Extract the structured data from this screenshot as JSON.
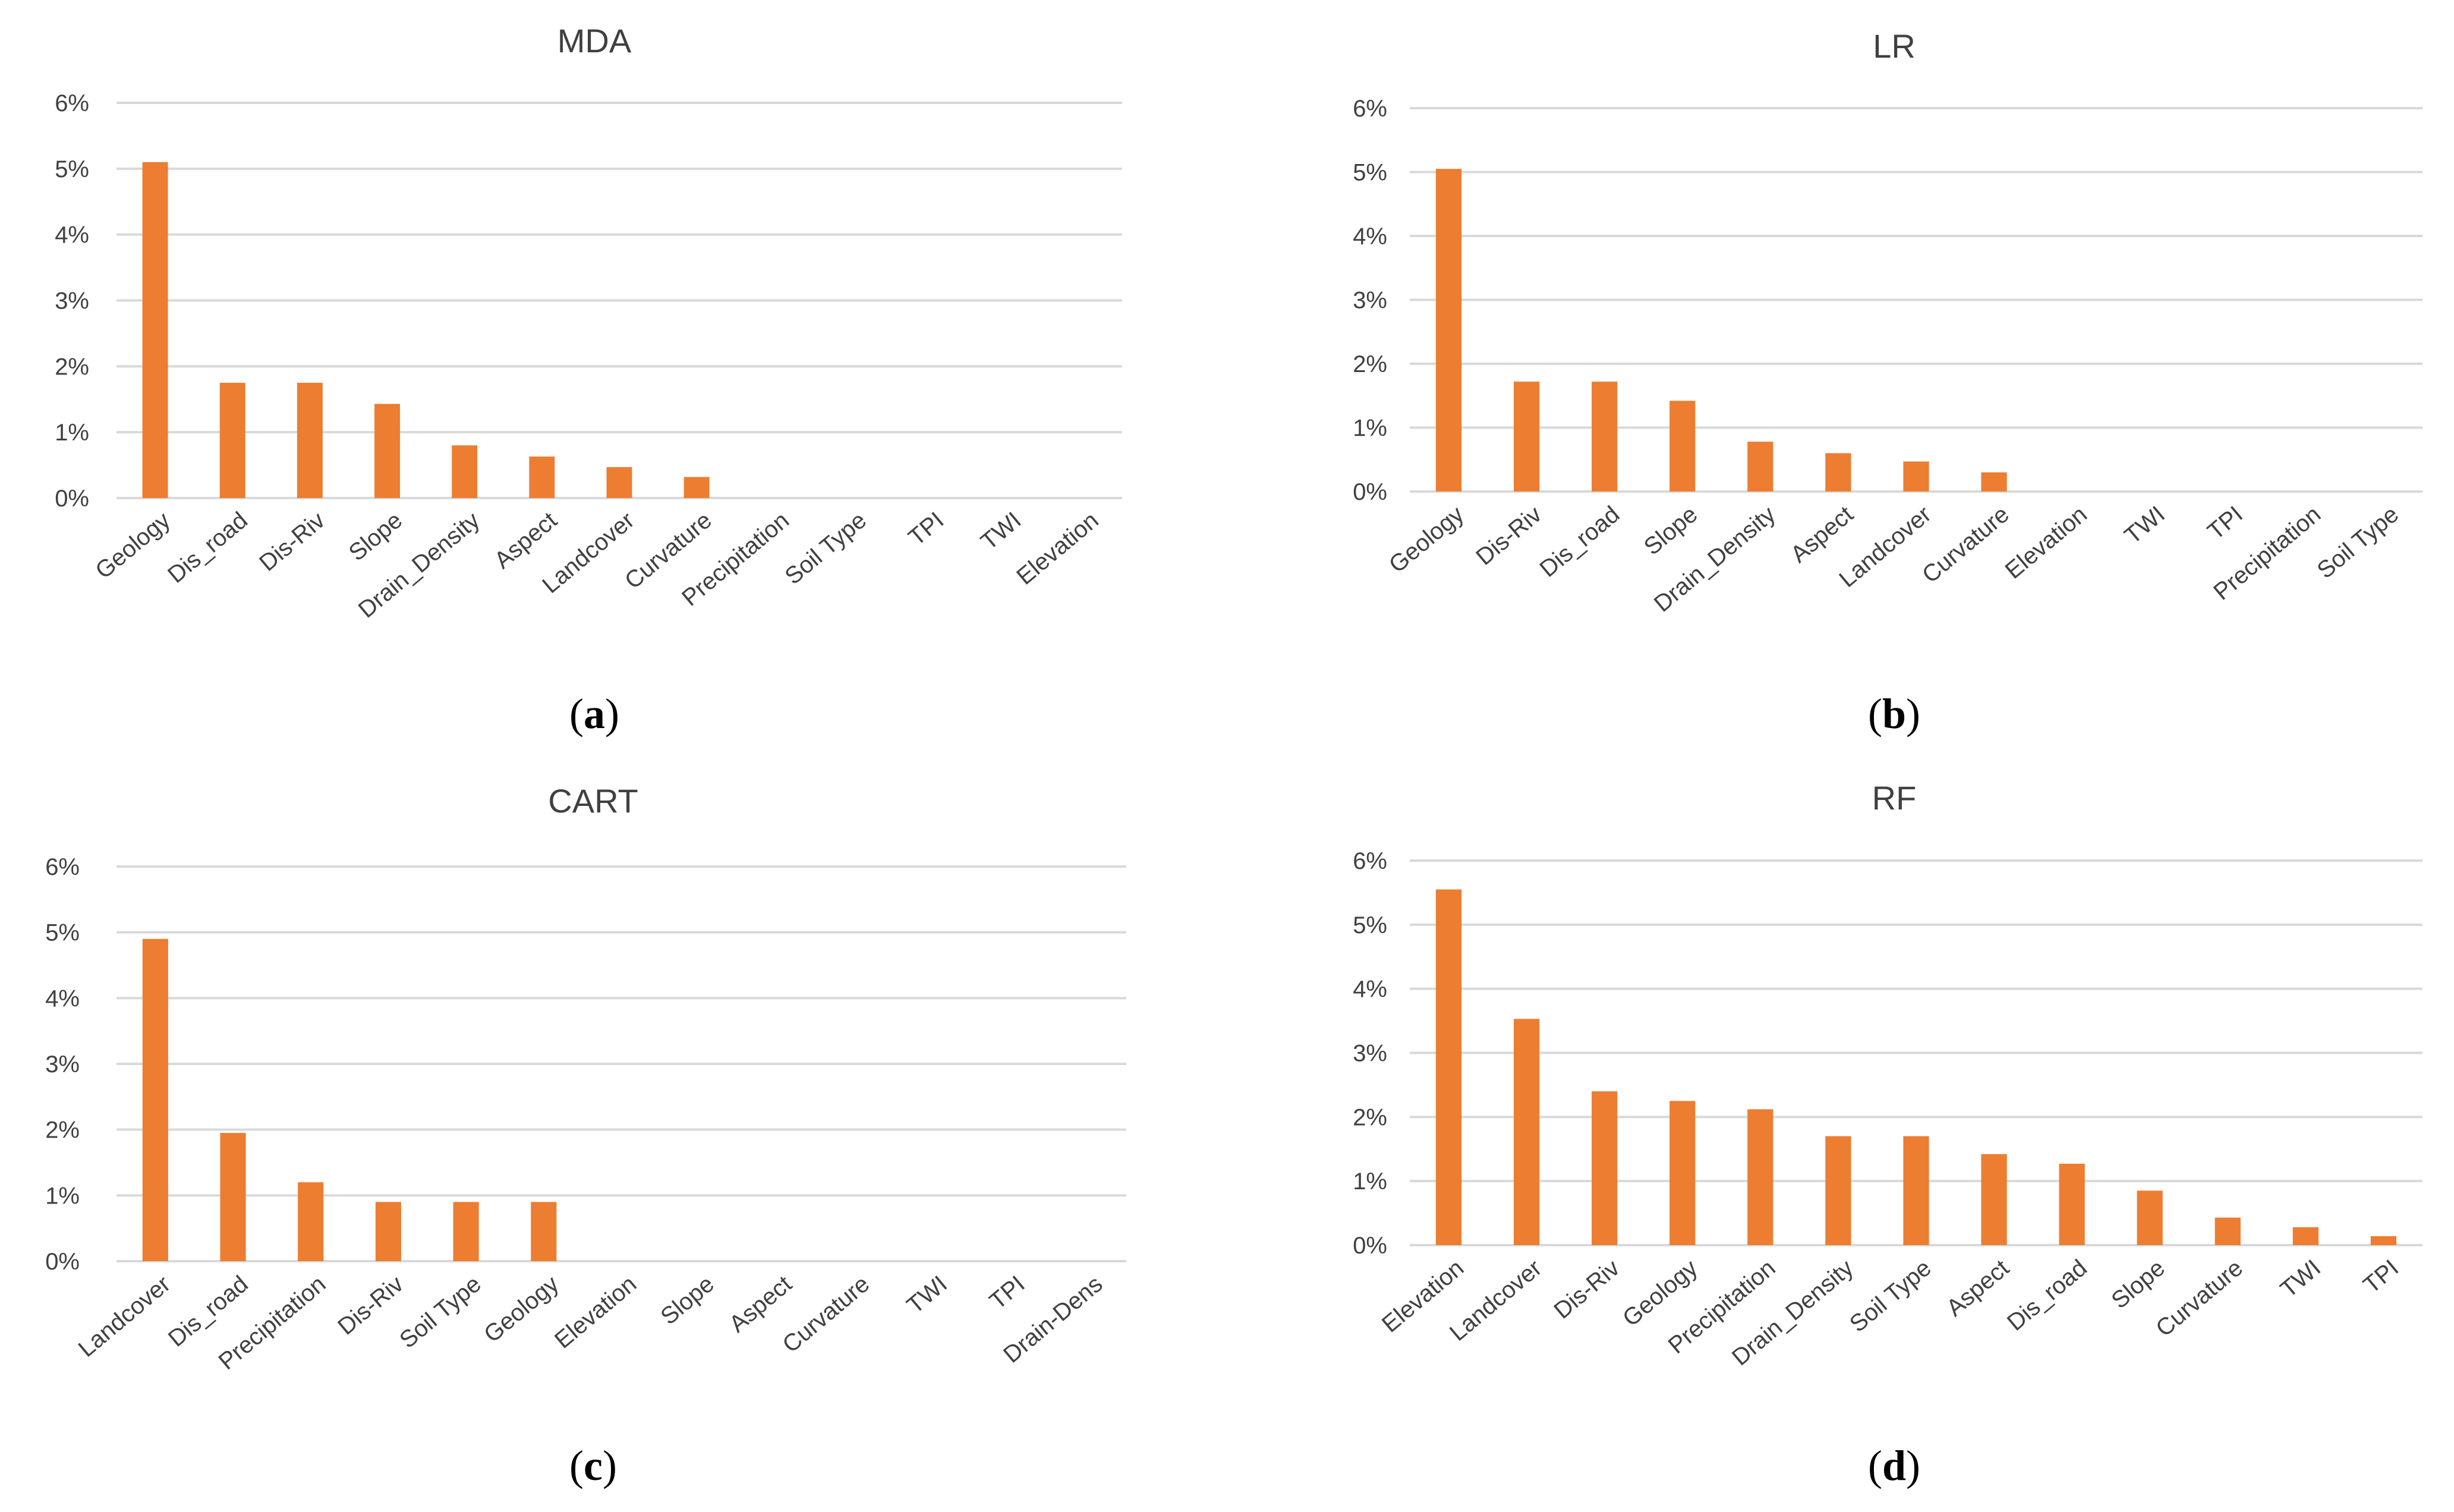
{
  "colors": {
    "bar": "#ED7D31",
    "grid": "#D9D9D9",
    "text": "#404040"
  },
  "chart_data": [
    {
      "type": "bar",
      "title": "MDA",
      "panel": "a",
      "ylim": [
        0,
        6
      ],
      "yticks": [
        "0%",
        "1%",
        "2%",
        "3%",
        "4%",
        "5%",
        "6%"
      ],
      "categories": [
        "Geology",
        "Dis_road",
        "Dis-Riv",
        "Slope",
        "Drain_Density",
        "Aspect",
        "Landcover",
        "Curvature",
        "Precipitation",
        "Soil Type",
        "TPI",
        "TWI",
        "Elevation"
      ],
      "values": [
        5.1,
        1.75,
        1.75,
        1.43,
        0.8,
        0.63,
        0.47,
        0.32,
        0,
        0,
        0,
        0,
        0
      ]
    },
    {
      "type": "bar",
      "title": "LR",
      "panel": "b",
      "ylim": [
        0,
        6
      ],
      "yticks": [
        "0%",
        "1%",
        "2%",
        "3%",
        "4%",
        "5%",
        "6%"
      ],
      "categories": [
        "Geology",
        "Dis-Riv",
        "Dis_road",
        "Slope",
        "Drain_Density",
        "Aspect",
        "Landcover",
        "Curvature",
        "Elevation",
        "TWI",
        "TPI",
        "Precipitation",
        "Soil Type"
      ],
      "values": [
        5.05,
        1.72,
        1.72,
        1.42,
        0.78,
        0.6,
        0.47,
        0.3,
        0,
        0,
        0,
        0,
        0
      ]
    },
    {
      "type": "bar",
      "title": "CART",
      "panel": "c",
      "ylim": [
        0,
        6
      ],
      "yticks": [
        "0%",
        "1%",
        "2%",
        "3%",
        "4%",
        "5%",
        "6%"
      ],
      "categories": [
        "Landcover",
        "Dis_road",
        "Precipitation",
        "Dis-Riv",
        "Soil Type",
        "Geology",
        "Elevation",
        "Slope",
        "Aspect",
        "Curvature",
        "TWI",
        "TPI",
        "Drain-Dens"
      ],
      "values": [
        4.9,
        1.95,
        1.2,
        0.9,
        0.9,
        0.9,
        0,
        0,
        0,
        0,
        0,
        0,
        0
      ]
    },
    {
      "type": "bar",
      "title": "RF",
      "panel": "d",
      "ylim": [
        0,
        6
      ],
      "yticks": [
        "0%",
        "1%",
        "2%",
        "3%",
        "4%",
        "5%",
        "6%"
      ],
      "categories": [
        "Elevation",
        "Landcover",
        "Dis-Riv",
        "Geology",
        "Precipitation",
        "Drain_Density",
        "Soil Type",
        "Aspect",
        "Dis_road",
        "Slope",
        "Curvature",
        "TWI",
        "TPI"
      ],
      "values": [
        5.55,
        3.53,
        2.4,
        2.25,
        2.12,
        1.7,
        1.7,
        1.42,
        1.27,
        0.85,
        0.43,
        0.28,
        0.14
      ]
    }
  ]
}
